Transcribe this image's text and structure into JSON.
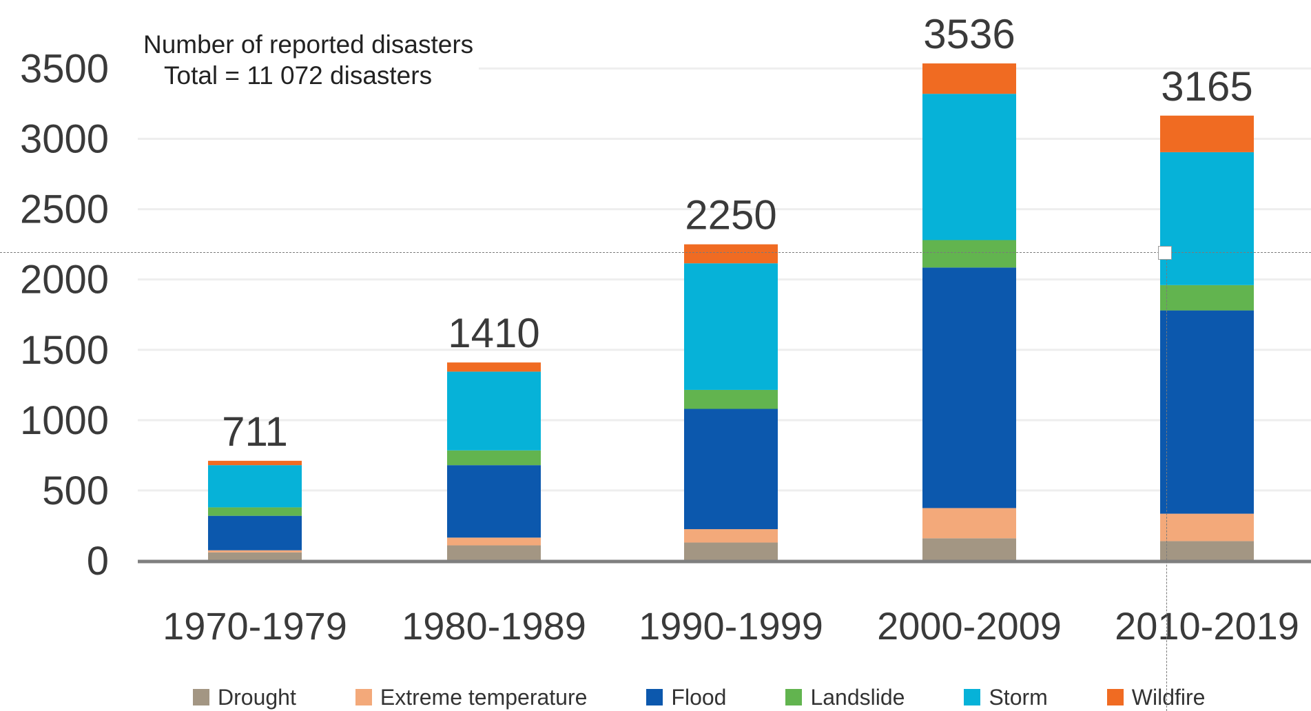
{
  "annotation": {
    "line1": "Number of reported disasters",
    "line2": "Total = 11 072 disasters"
  },
  "chart_data": {
    "type": "bar",
    "stacked": true,
    "categories": [
      "1970-1979",
      "1980-1989",
      "1990-1999",
      "2000-2009",
      "2010-2019"
    ],
    "totals": [
      711,
      1410,
      2250,
      3536,
      3165
    ],
    "total_labels": [
      "711",
      "1410",
      "2250",
      "3536",
      "3165"
    ],
    "series": [
      {
        "name": "Drought",
        "color": "#a39683",
        "values": [
          60,
          110,
          130,
          160,
          140
        ]
      },
      {
        "name": "Extreme temperature",
        "color": "#f3a97a",
        "values": [
          15,
          55,
          95,
          215,
          195
        ]
      },
      {
        "name": "Flood",
        "color": "#0c58ad",
        "values": [
          245,
          515,
          855,
          1710,
          1445
        ]
      },
      {
        "name": "Landslide",
        "color": "#62b44f",
        "values": [
          60,
          105,
          135,
          195,
          180
        ]
      },
      {
        "name": "Storm",
        "color": "#06b2d8",
        "values": [
          300,
          560,
          900,
          1040,
          945
        ]
      },
      {
        "name": "Wildfire",
        "color": "#f06b22",
        "values": [
          31,
          65,
          135,
          216,
          260
        ]
      }
    ],
    "yticks": [
      "0",
      "500",
      "1000",
      "1500",
      "2000",
      "2500",
      "3000",
      "3500"
    ],
    "ylim": [
      0,
      3600
    ],
    "grid": true,
    "legend_position": "bottom",
    "axis_color": "#7f7f7f",
    "grid_color": "#eeeeee"
  }
}
